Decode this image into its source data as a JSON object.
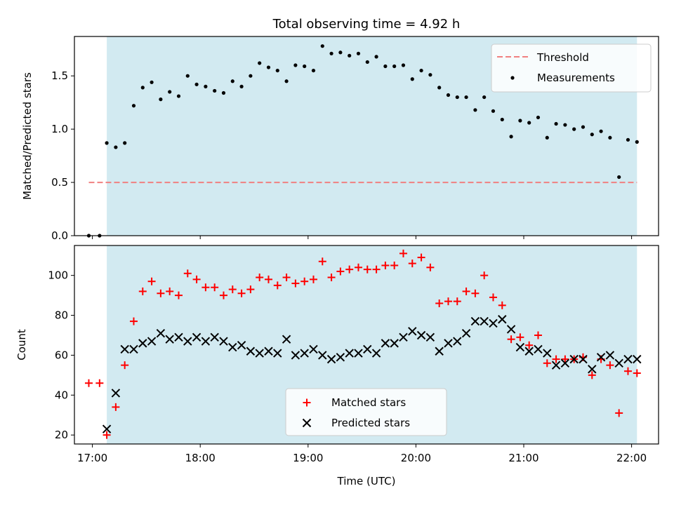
{
  "chart_data": [
    {
      "type": "scatter",
      "title": "Total observing time = 4.92 h",
      "ylabel": "Matched/Predicted stars",
      "ylim": [
        0,
        1.87
      ],
      "xlim": [
        "16:50",
        "22:15"
      ],
      "yticks": [
        "0.0",
        "0.5",
        "1.0",
        "1.5"
      ],
      "shaded_region": {
        "start": "17:08",
        "end": "22:03",
        "color": "#add8e6"
      },
      "threshold": {
        "name": "Threshold",
        "value": 0.5,
        "x_start": "16:58",
        "x_end": "22:03",
        "color": "#f08080",
        "style": "dashed"
      },
      "legend_position": "top-right",
      "series": [
        {
          "name": "Measurements",
          "color": "#000000",
          "marker": "dot",
          "x": [
            "16:58",
            "17:04",
            "17:08",
            "17:13",
            "17:18",
            "17:23",
            "17:28",
            "17:33",
            "17:38",
            "17:43",
            "17:48",
            "17:53",
            "17:58",
            "18:03",
            "18:08",
            "18:13",
            "18:18",
            "18:23",
            "18:28",
            "18:33",
            "18:38",
            "18:43",
            "18:48",
            "18:53",
            "18:58",
            "19:03",
            "19:08",
            "19:13",
            "19:18",
            "19:23",
            "19:28",
            "19:33",
            "19:38",
            "19:43",
            "19:48",
            "19:53",
            "19:58",
            "20:03",
            "20:08",
            "20:13",
            "20:18",
            "20:23",
            "20:28",
            "20:33",
            "20:38",
            "20:43",
            "20:48",
            "20:53",
            "20:58",
            "21:03",
            "21:08",
            "21:13",
            "21:18",
            "21:23",
            "21:28",
            "21:33",
            "21:38",
            "21:43",
            "21:48",
            "21:53",
            "21:58",
            "22:03"
          ],
          "y": [
            0.0,
            0.0,
            0.87,
            0.83,
            0.87,
            1.22,
            1.39,
            1.44,
            1.28,
            1.35,
            1.31,
            1.5,
            1.42,
            1.4,
            1.36,
            1.34,
            1.45,
            1.4,
            1.5,
            1.62,
            1.58,
            1.55,
            1.45,
            1.6,
            1.59,
            1.55,
            1.78,
            1.71,
            1.72,
            1.69,
            1.71,
            1.63,
            1.68,
            1.59,
            1.59,
            1.6,
            1.47,
            1.55,
            1.51,
            1.39,
            1.32,
            1.3,
            1.3,
            1.18,
            1.3,
            1.17,
            1.09,
            0.93,
            1.08,
            1.06,
            1.11,
            0.92,
            1.05,
            1.04,
            1.0,
            1.02,
            0.95,
            0.98,
            0.92,
            0.55,
            0.9,
            0.88
          ]
        }
      ]
    },
    {
      "type": "scatter",
      "xlabel": "Time (UTC)",
      "ylabel": "Count",
      "ylim": [
        15.5,
        115
      ],
      "xlim": [
        "16:50",
        "22:15"
      ],
      "xticks": [
        "17:00",
        "18:00",
        "19:00",
        "20:00",
        "21:00",
        "22:00"
      ],
      "yticks": [
        "20",
        "40",
        "60",
        "80",
        "100"
      ],
      "shaded_region": {
        "start": "17:08",
        "end": "22:03",
        "color": "#add8e6"
      },
      "legend_position": "lower center",
      "series": [
        {
          "name": "Matched stars",
          "color": "#ff0000",
          "marker": "plus",
          "x": [
            "16:58",
            "17:04",
            "17:08",
            "17:13",
            "17:18",
            "17:23",
            "17:28",
            "17:33",
            "17:38",
            "17:43",
            "17:48",
            "17:53",
            "17:58",
            "18:03",
            "18:08",
            "18:13",
            "18:18",
            "18:23",
            "18:28",
            "18:33",
            "18:38",
            "18:43",
            "18:48",
            "18:53",
            "18:58",
            "19:03",
            "19:08",
            "19:13",
            "19:18",
            "19:23",
            "19:28",
            "19:33",
            "19:38",
            "19:43",
            "19:48",
            "19:53",
            "19:58",
            "20:03",
            "20:08",
            "20:13",
            "20:18",
            "20:23",
            "20:28",
            "20:33",
            "20:38",
            "20:43",
            "20:48",
            "20:53",
            "20:58",
            "21:03",
            "21:08",
            "21:13",
            "21:18",
            "21:23",
            "21:28",
            "21:33",
            "21:38",
            "21:43",
            "21:48",
            "21:53",
            "21:58",
            "22:03"
          ],
          "y": [
            46,
            46,
            20,
            34,
            55,
            77,
            92,
            97,
            91,
            92,
            90,
            101,
            98,
            94,
            94,
            90,
            93,
            91,
            93,
            99,
            98,
            95,
            99,
            96,
            97,
            98,
            107,
            99,
            102,
            103,
            104,
            103,
            103,
            105,
            105,
            111,
            106,
            109,
            104,
            86,
            87,
            87,
            92,
            91,
            100,
            89,
            85,
            68,
            69,
            65,
            70,
            56,
            58,
            58,
            58,
            59,
            50,
            58,
            55,
            31,
            52,
            51
          ]
        },
        {
          "name": "Predicted stars",
          "color": "#000000",
          "marker": "x",
          "x": [
            "17:08",
            "17:13",
            "17:18",
            "17:23",
            "17:28",
            "17:33",
            "17:38",
            "17:43",
            "17:48",
            "17:53",
            "17:58",
            "18:03",
            "18:08",
            "18:13",
            "18:18",
            "18:23",
            "18:28",
            "18:33",
            "18:38",
            "18:43",
            "18:48",
            "18:53",
            "18:58",
            "19:03",
            "19:08",
            "19:13",
            "19:18",
            "19:23",
            "19:28",
            "19:33",
            "19:38",
            "19:43",
            "19:48",
            "19:53",
            "19:58",
            "20:03",
            "20:08",
            "20:13",
            "20:18",
            "20:23",
            "20:28",
            "20:33",
            "20:38",
            "20:43",
            "20:48",
            "20:53",
            "20:58",
            "21:03",
            "21:08",
            "21:13",
            "21:18",
            "21:23",
            "21:28",
            "21:33",
            "21:38",
            "21:43",
            "21:48",
            "21:53",
            "21:58",
            "22:03"
          ],
          "y": [
            23,
            41,
            63,
            63,
            66,
            67,
            71,
            68,
            69,
            67,
            69,
            67,
            69,
            67,
            64,
            65,
            62,
            61,
            62,
            61,
            68,
            60,
            61,
            63,
            60,
            58,
            59,
            61,
            61,
            63,
            61,
            66,
            66,
            69,
            72,
            70,
            69,
            62,
            66,
            67,
            71,
            77,
            77,
            76,
            78,
            73,
            64,
            62,
            63,
            61,
            55,
            56,
            58,
            58,
            53,
            59,
            60,
            56,
            58,
            58
          ]
        }
      ]
    }
  ]
}
